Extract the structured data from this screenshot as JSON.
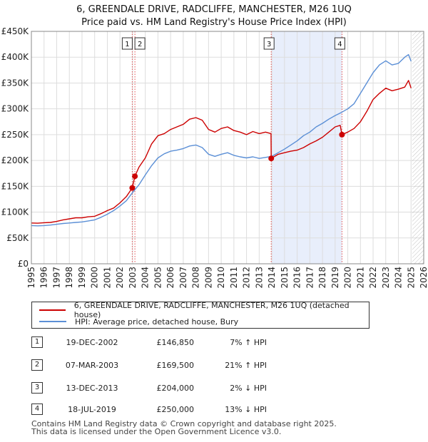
{
  "header": {
    "title": "6, GREENDALE DRIVE, RADCLIFFE, MANCHESTER, M26 1UQ",
    "subtitle": "Price paid vs. HM Land Registry's House Price Index (HPI)"
  },
  "colors": {
    "property": "#cc0000",
    "hpi": "#5b8fd6",
    "shade": "#e8eefb",
    "grid": "#dddddd",
    "marker_line": "#e05050"
  },
  "chart_data": {
    "type": "line",
    "title": "Price paid vs. HM Land Registry's House Price Index (HPI)",
    "xlabel": "",
    "ylabel": "",
    "xlim": [
      1995.0,
      2026.0
    ],
    "ylim": [
      0,
      450000
    ],
    "grid": true,
    "y_ticks": [
      0,
      50000,
      100000,
      150000,
      200000,
      250000,
      300000,
      350000,
      400000,
      450000
    ],
    "y_tick_labels": [
      "£0",
      "£50K",
      "£100K",
      "£150K",
      "£200K",
      "£250K",
      "£300K",
      "£350K",
      "£400K",
      "£450K"
    ],
    "x_ticks": [
      1995,
      1996,
      1997,
      1998,
      1999,
      2000,
      2001,
      2002,
      2003,
      2004,
      2005,
      2006,
      2007,
      2008,
      2009,
      2010,
      2011,
      2012,
      2013,
      2014,
      2015,
      2016,
      2017,
      2018,
      2019,
      2020,
      2021,
      2022,
      2023,
      2024,
      2025,
      2026
    ],
    "x_tick_labels": [
      "1995",
      "1996",
      "1997",
      "1998",
      "1999",
      "2000",
      "2001",
      "2002",
      "2003",
      "2004",
      "2005",
      "2006",
      "2007",
      "2008",
      "2009",
      "2010",
      "2011",
      "2012",
      "2013",
      "2014",
      "2015",
      "2016",
      "2017",
      "2018",
      "2019",
      "2020",
      "2021",
      "2022",
      "2023",
      "2024",
      "2025",
      "2026"
    ],
    "shaded_period": [
      2013.95,
      2019.54
    ],
    "forecast_from": 2025.1,
    "series": [
      {
        "name": "6, GREENDALE DRIVE, RADCLIFFE, MANCHESTER, M26 1UQ (detached house)",
        "color": "#cc0000",
        "points": [
          [
            1995.0,
            79000
          ],
          [
            1995.5,
            78500
          ],
          [
            1996.0,
            79500
          ],
          [
            1996.5,
            80000
          ],
          [
            1997.0,
            82000
          ],
          [
            1997.5,
            85000
          ],
          [
            1998.0,
            87000
          ],
          [
            1998.5,
            89000
          ],
          [
            1999.0,
            89000
          ],
          [
            1999.5,
            91000
          ],
          [
            2000.0,
            92000
          ],
          [
            2000.5,
            97000
          ],
          [
            2001.0,
            103000
          ],
          [
            2001.5,
            108000
          ],
          [
            2002.0,
            118000
          ],
          [
            2002.5,
            130000
          ],
          [
            2002.97,
            146850
          ],
          [
            2003.18,
            169500
          ],
          [
            2003.5,
            187000
          ],
          [
            2004.0,
            205000
          ],
          [
            2004.5,
            232000
          ],
          [
            2005.0,
            248000
          ],
          [
            2005.5,
            252000
          ],
          [
            2006.0,
            260000
          ],
          [
            2006.5,
            265000
          ],
          [
            2007.0,
            270000
          ],
          [
            2007.5,
            280000
          ],
          [
            2008.0,
            283000
          ],
          [
            2008.5,
            278000
          ],
          [
            2009.0,
            260000
          ],
          [
            2009.5,
            255000
          ],
          [
            2010.0,
            262000
          ],
          [
            2010.5,
            265000
          ],
          [
            2011.0,
            258000
          ],
          [
            2011.5,
            255000
          ],
          [
            2012.0,
            250000
          ],
          [
            2012.5,
            256000
          ],
          [
            2013.0,
            252000
          ],
          [
            2013.5,
            255000
          ],
          [
            2013.93,
            252000
          ],
          [
            2013.95,
            204000
          ],
          [
            2014.5,
            212000
          ],
          [
            2015.0,
            215000
          ],
          [
            2015.5,
            218000
          ],
          [
            2016.0,
            220000
          ],
          [
            2016.5,
            225000
          ],
          [
            2017.0,
            232000
          ],
          [
            2017.5,
            238000
          ],
          [
            2018.0,
            245000
          ],
          [
            2018.5,
            255000
          ],
          [
            2019.0,
            265000
          ],
          [
            2019.4,
            268000
          ],
          [
            2019.54,
            250000
          ],
          [
            2020.0,
            255000
          ],
          [
            2020.5,
            262000
          ],
          [
            2021.0,
            275000
          ],
          [
            2021.5,
            295000
          ],
          [
            2022.0,
            318000
          ],
          [
            2022.5,
            330000
          ],
          [
            2023.0,
            340000
          ],
          [
            2023.5,
            335000
          ],
          [
            2024.0,
            338000
          ],
          [
            2024.5,
            342000
          ],
          [
            2024.8,
            355000
          ],
          [
            2025.0,
            340000
          ]
        ]
      },
      {
        "name": "HPI: Average price, detached house, Bury",
        "color": "#5b8fd6",
        "points": [
          [
            1995.0,
            74000
          ],
          [
            1995.5,
            73500
          ],
          [
            1996.0,
            74000
          ],
          [
            1996.5,
            75000
          ],
          [
            1997.0,
            76500
          ],
          [
            1997.5,
            78000
          ],
          [
            1998.0,
            79000
          ],
          [
            1998.5,
            80000
          ],
          [
            1999.0,
            81000
          ],
          [
            1999.5,
            83000
          ],
          [
            2000.0,
            85000
          ],
          [
            2000.5,
            90000
          ],
          [
            2001.0,
            96000
          ],
          [
            2001.5,
            103000
          ],
          [
            2002.0,
            112000
          ],
          [
            2002.5,
            122000
          ],
          [
            2003.0,
            138000
          ],
          [
            2003.5,
            153000
          ],
          [
            2004.0,
            172000
          ],
          [
            2004.5,
            190000
          ],
          [
            2005.0,
            205000
          ],
          [
            2005.5,
            213000
          ],
          [
            2006.0,
            218000
          ],
          [
            2006.5,
            220000
          ],
          [
            2007.0,
            223000
          ],
          [
            2007.5,
            228000
          ],
          [
            2008.0,
            230000
          ],
          [
            2008.5,
            225000
          ],
          [
            2009.0,
            212000
          ],
          [
            2009.5,
            208000
          ],
          [
            2010.0,
            212000
          ],
          [
            2010.5,
            215000
          ],
          [
            2011.0,
            210000
          ],
          [
            2011.5,
            207000
          ],
          [
            2012.0,
            205000
          ],
          [
            2012.5,
            207000
          ],
          [
            2013.0,
            204000
          ],
          [
            2013.5,
            206000
          ],
          [
            2014.0,
            208000
          ],
          [
            2014.5,
            215000
          ],
          [
            2015.0,
            222000
          ],
          [
            2015.5,
            230000
          ],
          [
            2016.0,
            238000
          ],
          [
            2016.5,
            248000
          ],
          [
            2017.0,
            255000
          ],
          [
            2017.5,
            265000
          ],
          [
            2018.0,
            272000
          ],
          [
            2018.5,
            280000
          ],
          [
            2019.0,
            287000
          ],
          [
            2019.5,
            293000
          ],
          [
            2020.0,
            300000
          ],
          [
            2020.5,
            310000
          ],
          [
            2021.0,
            330000
          ],
          [
            2021.5,
            350000
          ],
          [
            2022.0,
            370000
          ],
          [
            2022.5,
            385000
          ],
          [
            2023.0,
            393000
          ],
          [
            2023.5,
            385000
          ],
          [
            2024.0,
            388000
          ],
          [
            2024.5,
            400000
          ],
          [
            2024.8,
            405000
          ],
          [
            2025.0,
            392000
          ]
        ]
      }
    ],
    "sales": [
      {
        "label": "1",
        "x": 2002.97,
        "price": 146850
      },
      {
        "label": "2",
        "x": 2003.18,
        "price": 169500
      },
      {
        "label": "3",
        "x": 2013.95,
        "price": 204000
      },
      {
        "label": "4",
        "x": 2019.54,
        "price": 250000
      }
    ]
  },
  "legend": {
    "items": [
      {
        "label": "6, GREENDALE DRIVE, RADCLIFFE, MANCHESTER, M26 1UQ (detached house)",
        "color": "#cc0000"
      },
      {
        "label": "HPI: Average price, detached house, Bury",
        "color": "#5b8fd6"
      }
    ]
  },
  "sales_table": [
    {
      "num": "1",
      "date": "19-DEC-2002",
      "price": "£146,850",
      "hpi": "7% ↑ HPI"
    },
    {
      "num": "2",
      "date": "07-MAR-2003",
      "price": "£169,500",
      "hpi": "21% ↑ HPI"
    },
    {
      "num": "3",
      "date": "13-DEC-2013",
      "price": "£204,000",
      "hpi": "2% ↓ HPI"
    },
    {
      "num": "4",
      "date": "18-JUL-2019",
      "price": "£250,000",
      "hpi": "13% ↓ HPI"
    }
  ],
  "footer": {
    "line1": "Contains HM Land Registry data © Crown copyright and database right 2025.",
    "line2": "This data is licensed under the Open Government Licence v3.0."
  }
}
